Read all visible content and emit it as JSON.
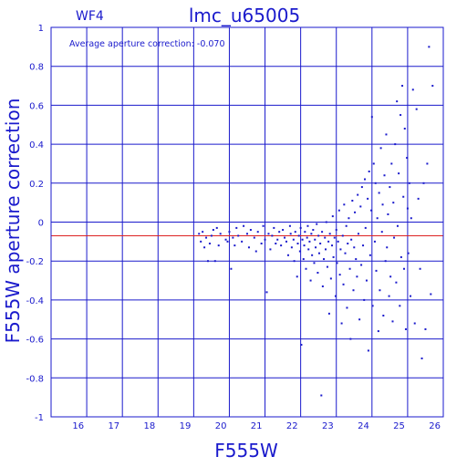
{
  "chart_data": {
    "type": "scatter",
    "title": "lmc_u65005",
    "chip_label": "WF4",
    "annotation": "Average aperture correction:  -0.070",
    "xlabel": "F555W",
    "ylabel": "F555W aperture correction",
    "xlim": [
      15,
      26
    ],
    "ylim": [
      -1,
      1
    ],
    "x_ticks": [
      "16",
      "17",
      "18",
      "19",
      "20",
      "21",
      "22",
      "23",
      "24",
      "25",
      "26"
    ],
    "y_ticks": [
      "1",
      "0.8",
      "0.6",
      "0.4",
      "0.2",
      "0",
      "-0.2",
      "-0.4",
      "-0.6",
      "-0.8",
      "-1"
    ],
    "grid": true,
    "reference_lines": [
      {
        "y": 0.0,
        "color": "#1a1acc"
      },
      {
        "y": -0.07,
        "color": "#dd2222",
        "label": "average"
      }
    ],
    "series": [
      {
        "color": "#1a1acc",
        "points": [
          [
            19.15,
            -0.06
          ],
          [
            19.2,
            -0.1
          ],
          [
            19.25,
            -0.05
          ],
          [
            19.3,
            -0.13
          ],
          [
            19.35,
            -0.08
          ],
          [
            19.4,
            -0.2
          ],
          [
            19.45,
            -0.11
          ],
          [
            19.5,
            -0.07
          ],
          [
            19.55,
            -0.04
          ],
          [
            19.6,
            -0.2
          ],
          [
            19.65,
            -0.03
          ],
          [
            19.7,
            -0.12
          ],
          [
            19.75,
            -0.06
          ],
          [
            19.9,
            -0.09
          ],
          [
            19.95,
            -0.1
          ],
          [
            20.0,
            -0.05
          ],
          [
            20.05,
            -0.24
          ],
          [
            20.1,
            -0.08
          ],
          [
            20.15,
            -0.12
          ],
          [
            20.2,
            -0.03
          ],
          [
            20.25,
            -0.07
          ],
          [
            20.35,
            -0.1
          ],
          [
            20.4,
            -0.02
          ],
          [
            20.5,
            -0.06
          ],
          [
            20.55,
            -0.13
          ],
          [
            20.6,
            -0.04
          ],
          [
            20.7,
            -0.08
          ],
          [
            20.75,
            -0.15
          ],
          [
            20.8,
            -0.05
          ],
          [
            20.9,
            -0.11
          ],
          [
            20.95,
            -0.02
          ],
          [
            21.0,
            -0.09
          ],
          [
            21.05,
            -0.36
          ],
          [
            21.1,
            -0.06
          ],
          [
            21.15,
            -0.14
          ],
          [
            21.2,
            -0.07
          ],
          [
            21.25,
            -0.03
          ],
          [
            21.3,
            -0.11
          ],
          [
            21.35,
            -0.09
          ],
          [
            21.4,
            -0.05
          ],
          [
            21.45,
            -0.12
          ],
          [
            21.5,
            -0.04
          ],
          [
            21.55,
            -0.08
          ],
          [
            21.6,
            -0.1
          ],
          [
            21.65,
            -0.17
          ],
          [
            21.7,
            -0.02
          ],
          [
            21.72,
            -0.06
          ],
          [
            21.75,
            -0.13
          ],
          [
            21.8,
            -0.09
          ],
          [
            21.82,
            -0.2
          ],
          [
            21.85,
            -0.05
          ],
          [
            21.9,
            -0.28
          ],
          [
            21.92,
            -0.11
          ],
          [
            21.95,
            -0.07
          ],
          [
            21.98,
            -0.15
          ],
          [
            22.0,
            -0.03
          ],
          [
            22.02,
            -0.63
          ],
          [
            22.05,
            -0.09
          ],
          [
            22.08,
            -0.19
          ],
          [
            22.1,
            -0.12
          ],
          [
            22.12,
            -0.05
          ],
          [
            22.15,
            -0.24
          ],
          [
            22.18,
            -0.08
          ],
          [
            22.2,
            -0.02
          ],
          [
            22.22,
            -0.14
          ],
          [
            22.25,
            -0.1
          ],
          [
            22.28,
            -0.3
          ],
          [
            22.3,
            -0.06
          ],
          [
            22.32,
            -0.17
          ],
          [
            22.35,
            -0.04
          ],
          [
            22.38,
            -0.21
          ],
          [
            22.4,
            -0.09
          ],
          [
            22.42,
            -0.13
          ],
          [
            22.45,
            -0.01
          ],
          [
            22.48,
            -0.26
          ],
          [
            22.5,
            -0.07
          ],
          [
            22.52,
            -0.16
          ],
          [
            22.55,
            -0.11
          ],
          [
            22.58,
            -0.89
          ],
          [
            22.6,
            -0.05
          ],
          [
            22.62,
            -0.33
          ],
          [
            22.65,
            -0.19
          ],
          [
            22.68,
            -0.08
          ],
          [
            22.7,
            -0.14
          ],
          [
            22.72,
            0.0
          ],
          [
            22.75,
            -0.23
          ],
          [
            22.78,
            -0.1
          ],
          [
            22.8,
            -0.47
          ],
          [
            22.82,
            -0.06
          ],
          [
            22.85,
            -0.29
          ],
          [
            22.88,
            -0.12
          ],
          [
            22.9,
            0.03
          ],
          [
            22.92,
            -0.18
          ],
          [
            22.95,
            -0.08
          ],
          [
            22.98,
            -0.38
          ],
          [
            23.0,
            -0.04
          ],
          [
            23.02,
            -0.21
          ],
          [
            23.05,
            -0.1
          ],
          [
            23.08,
            0.06
          ],
          [
            23.1,
            -0.27
          ],
          [
            23.12,
            -0.14
          ],
          [
            23.15,
            -0.52
          ],
          [
            23.18,
            -0.07
          ],
          [
            23.2,
            -0.32
          ],
          [
            23.22,
            0.09
          ],
          [
            23.25,
            -0.16
          ],
          [
            23.28,
            -0.02
          ],
          [
            23.3,
            -0.44
          ],
          [
            23.32,
            -0.11
          ],
          [
            23.35,
            0.02
          ],
          [
            23.38,
            -0.24
          ],
          [
            23.4,
            -0.6
          ],
          [
            23.42,
            -0.09
          ],
          [
            23.45,
            0.11
          ],
          [
            23.48,
            -0.35
          ],
          [
            23.5,
            -0.13
          ],
          [
            23.52,
            0.05
          ],
          [
            23.55,
            -0.19
          ],
          [
            23.58,
            -0.28
          ],
          [
            23.6,
            0.14
          ],
          [
            23.62,
            -0.06
          ],
          [
            23.65,
            -0.5
          ],
          [
            23.68,
            0.08
          ],
          [
            23.7,
            -0.22
          ],
          [
            23.72,
            0.18
          ],
          [
            23.75,
            -0.12
          ],
          [
            23.78,
            -0.4
          ],
          [
            23.8,
            0.22
          ],
          [
            23.82,
            -0.03
          ],
          [
            23.85,
            -0.3
          ],
          [
            23.88,
            0.12
          ],
          [
            23.9,
            -0.66
          ],
          [
            23.92,
            0.26
          ],
          [
            23.95,
            -0.17
          ],
          [
            23.98,
            0.06
          ],
          [
            24.0,
            0.54
          ],
          [
            24.02,
            -0.43
          ],
          [
            24.05,
            0.3
          ],
          [
            24.08,
            -0.1
          ],
          [
            24.1,
            0.2
          ],
          [
            24.12,
            -0.25
          ],
          [
            24.15,
            0.02
          ],
          [
            24.18,
            -0.56
          ],
          [
            24.2,
            0.15
          ],
          [
            24.22,
            -0.35
          ],
          [
            24.25,
            0.38
          ],
          [
            24.28,
            -0.05
          ],
          [
            24.3,
            0.09
          ],
          [
            24.32,
            -0.48
          ],
          [
            24.35,
            0.24
          ],
          [
            24.38,
            -0.2
          ],
          [
            24.4,
            0.45
          ],
          [
            24.42,
            -0.13
          ],
          [
            24.45,
            0.04
          ],
          [
            24.48,
            -0.38
          ],
          [
            24.5,
            0.18
          ],
          [
            24.52,
            -0.28
          ],
          [
            24.55,
            0.3
          ],
          [
            24.58,
            -0.51
          ],
          [
            24.6,
            0.1
          ],
          [
            24.62,
            -0.08
          ],
          [
            24.65,
            0.4
          ],
          [
            24.68,
            -0.31
          ],
          [
            24.7,
            0.62
          ],
          [
            24.72,
            -0.02
          ],
          [
            24.75,
            0.25
          ],
          [
            24.78,
            -0.43
          ],
          [
            24.8,
            0.55
          ],
          [
            24.82,
            -0.18
          ],
          [
            24.85,
            0.7
          ],
          [
            24.88,
            0.13
          ],
          [
            24.9,
            -0.24
          ],
          [
            24.92,
            0.48
          ],
          [
            24.95,
            -0.55
          ],
          [
            24.98,
            0.33
          ],
          [
            25.0,
            0.07
          ],
          [
            25.02,
            -0.16
          ],
          [
            25.05,
            0.2
          ],
          [
            25.08,
            -0.38
          ],
          [
            25.1,
            0.02
          ],
          [
            25.15,
            0.68
          ],
          [
            25.2,
            -0.52
          ],
          [
            25.25,
            0.58
          ],
          [
            25.3,
            0.12
          ],
          [
            25.35,
            -0.24
          ],
          [
            25.4,
            -0.7
          ],
          [
            25.45,
            0.2
          ],
          [
            25.5,
            -0.55
          ],
          [
            25.55,
            0.3
          ],
          [
            25.6,
            0.9
          ],
          [
            25.65,
            -0.37
          ],
          [
            25.7,
            0.7
          ]
        ]
      }
    ]
  }
}
